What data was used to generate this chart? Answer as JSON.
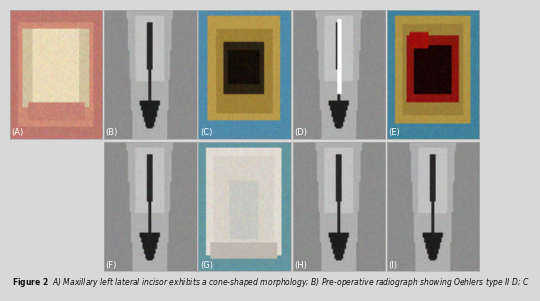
{
  "figure_title": "Figure 2",
  "caption": "  A) Maxillary left lateral incisor exhibits a cone-shaped morphology; B) Pre-operative radiograph showing Oehlers type II D; C",
  "bg_color": "#d8d8d8",
  "panel_labels_row1": [
    "(A)",
    "(B)",
    "(C)",
    "(D)",
    "(E)"
  ],
  "panel_labels_row2": [
    "(F)",
    "(G)",
    "(H)",
    "(I)"
  ],
  "label_fontsize": 6,
  "caption_fontsize": 5.5,
  "fig_width": 4.74,
  "fig_height": 2.87
}
